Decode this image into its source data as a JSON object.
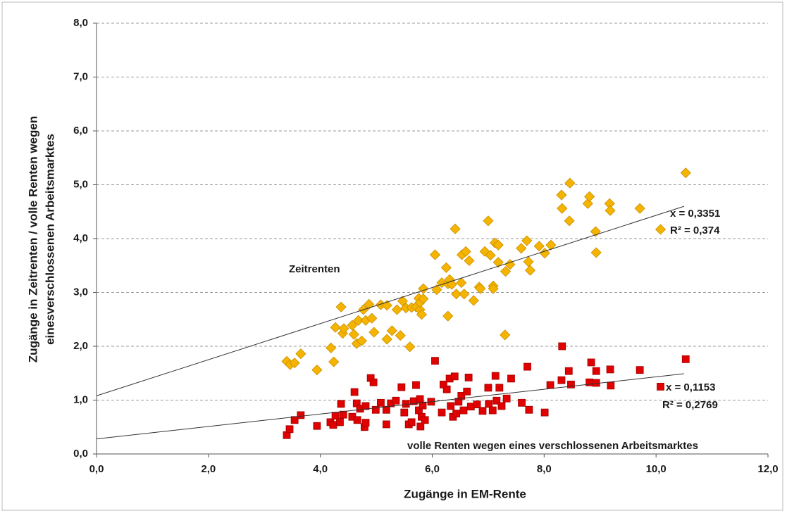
{
  "chart_data": {
    "type": "scatter",
    "x_label": "Zugänge in EM-Rente",
    "y_label": [
      "Zugänge in Zeitrenten / volle Renten wegen",
      "einesverschlossenen Arbeitsmarktes"
    ],
    "xlim": [
      0,
      12
    ],
    "ylim": [
      0,
      8
    ],
    "xticks": [
      {
        "value": 0,
        "label": "0,0"
      },
      {
        "value": 2,
        "label": "2,0"
      },
      {
        "value": 4,
        "label": "4,0"
      },
      {
        "value": 6,
        "label": "6,0"
      },
      {
        "value": 8,
        "label": "8,0"
      },
      {
        "value": 10,
        "label": "10,0"
      },
      {
        "value": 12,
        "label": "12,0"
      }
    ],
    "yticks": [
      {
        "value": 0,
        "label": "0,0"
      },
      {
        "value": 1,
        "label": "1,0"
      },
      {
        "value": 2,
        "label": "2,0"
      },
      {
        "value": 3,
        "label": "3,0"
      },
      {
        "value": 4,
        "label": "4,0"
      },
      {
        "value": 5,
        "label": "5,0"
      },
      {
        "value": 6,
        "label": "6,0"
      },
      {
        "value": 7,
        "label": "7,0"
      },
      {
        "value": 8,
        "label": "8,0"
      }
    ],
    "grid": true,
    "annotations": [
      "Zeitrenten",
      "x = 0,3351",
      "R² = 0,374",
      "x = 0,1153",
      "R² = 0,2769",
      "volle Renten wegen eines verschlossenen Arbeitsmarktes"
    ],
    "series": [
      {
        "marker": "diamond",
        "color": "#f5b400",
        "x": [
          3.4,
          3.46,
          3.54,
          3.65,
          3.94,
          4.19,
          4.24,
          4.27,
          4.37,
          4.4,
          4.42,
          4.57,
          4.6,
          4.65,
          4.68,
          4.74,
          4.77,
          4.81,
          4.87,
          4.92,
          4.96,
          5.08,
          5.19,
          5.19,
          5.28,
          5.37,
          5.43,
          5.47,
          5.53,
          5.6,
          5.63,
          5.71,
          5.76,
          5.78,
          5.81,
          5.84,
          5.78,
          5.84,
          6.05,
          6.08,
          6.17,
          6.25,
          6.28,
          6.31,
          6.35,
          6.28,
          6.41,
          6.43,
          6.52,
          6.53,
          6.57,
          6.6,
          6.66,
          6.74,
          6.84,
          6.86,
          6.94,
          7.0,
          7.04,
          7.09,
          7.09,
          7.12,
          7.18,
          7.18,
          7.3,
          7.31,
          7.39,
          7.59,
          7.69,
          7.72,
          7.75,
          7.91,
          8.01,
          8.12,
          8.31,
          8.32,
          8.45,
          8.46,
          8.78,
          8.81,
          8.92,
          8.93,
          9.17,
          9.18,
          9.71,
          10.08,
          10.53
        ],
        "values": [
          1.72,
          1.66,
          1.69,
          1.86,
          1.56,
          1.97,
          1.71,
          2.35,
          2.73,
          2.24,
          2.33,
          2.39,
          2.22,
          2.05,
          2.48,
          2.1,
          2.68,
          2.48,
          2.78,
          2.52,
          2.26,
          2.77,
          2.76,
          2.13,
          2.29,
          2.68,
          2.2,
          2.84,
          2.71,
          1.99,
          2.72,
          2.73,
          2.89,
          2.68,
          2.59,
          3.07,
          2.81,
          2.88,
          3.7,
          3.05,
          3.18,
          3.46,
          3.16,
          3.24,
          3.15,
          2.56,
          4.18,
          2.97,
          3.18,
          3.7,
          2.97,
          3.76,
          3.59,
          2.85,
          3.1,
          3.07,
          3.76,
          4.33,
          3.69,
          3.12,
          3.07,
          3.92,
          3.88,
          3.56,
          2.21,
          3.39,
          3.52,
          3.82,
          3.96,
          3.57,
          3.41,
          3.86,
          3.73,
          3.88,
          4.81,
          4.56,
          4.33,
          5.03,
          4.65,
          4.78,
          4.13,
          3.74,
          4.65,
          4.52,
          4.56,
          4.17,
          5.22
        ],
        "trendline": {
          "x": [
            0,
            10.5
          ],
          "values": [
            1.08,
            4.6
          ]
        }
      },
      {
        "marker": "square",
        "color": "#e00000",
        "x": [
          3.4,
          3.45,
          3.54,
          3.65,
          3.94,
          4.18,
          4.23,
          4.27,
          4.35,
          4.37,
          4.41,
          4.57,
          4.61,
          4.65,
          4.66,
          4.71,
          4.79,
          4.81,
          4.81,
          4.9,
          4.95,
          4.99,
          5.08,
          5.18,
          5.18,
          5.26,
          5.35,
          5.45,
          5.5,
          5.53,
          5.58,
          5.63,
          5.67,
          5.71,
          5.76,
          5.78,
          5.79,
          5.81,
          5.83,
          5.87,
          5.98,
          6.05,
          6.17,
          6.2,
          6.26,
          6.31,
          6.33,
          6.37,
          6.4,
          6.43,
          6.47,
          6.52,
          6.56,
          6.62,
          6.65,
          6.69,
          6.8,
          6.9,
          7.0,
          7.01,
          7.08,
          7.13,
          7.15,
          7.2,
          7.24,
          7.33,
          7.41,
          7.6,
          7.7,
          7.73,
          8.01,
          8.11,
          8.31,
          8.32,
          8.44,
          8.48,
          8.81,
          8.84,
          8.93,
          8.93,
          9.18,
          9.19,
          9.71,
          10.08,
          10.53
        ],
        "values": [
          0.35,
          0.46,
          0.63,
          0.72,
          0.52,
          0.59,
          0.54,
          0.71,
          0.59,
          0.93,
          0.73,
          0.69,
          1.15,
          0.94,
          0.63,
          0.84,
          0.5,
          0.58,
          0.89,
          1.41,
          1.33,
          0.82,
          0.95,
          0.55,
          0.82,
          0.94,
          0.99,
          1.24,
          0.77,
          0.93,
          0.55,
          0.59,
          0.98,
          1.28,
          0.81,
          1.02,
          0.51,
          0.69,
          0.9,
          0.63,
          0.97,
          1.73,
          0.77,
          1.29,
          1.2,
          1.4,
          0.89,
          0.69,
          1.44,
          0.75,
          0.97,
          1.08,
          0.81,
          1.16,
          1.42,
          0.88,
          0.92,
          0.8,
          1.23,
          0.93,
          0.81,
          1.45,
          0.99,
          1.23,
          0.89,
          1.03,
          1.4,
          0.95,
          1.62,
          0.82,
          0.77,
          1.28,
          1.37,
          2.0,
          1.54,
          1.29,
          1.33,
          1.7,
          1.54,
          1.32,
          1.57,
          1.27,
          1.56,
          1.25,
          1.76
        ],
        "trendline": {
          "x": [
            0,
            10.5
          ],
          "values": [
            0.28,
            1.49
          ]
        }
      }
    ]
  }
}
